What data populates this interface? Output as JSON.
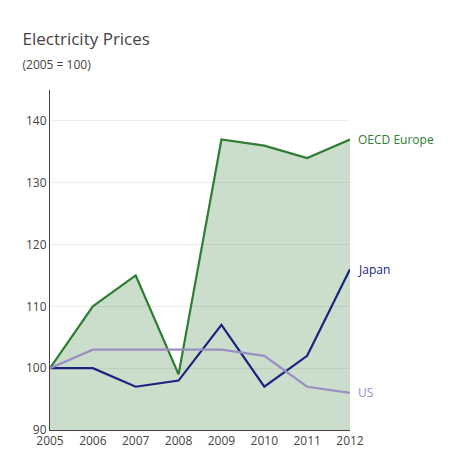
{
  "chart_data": {
    "type": "line",
    "title": "Electricity Prices",
    "subtitle": "(2005 = 100)",
    "x": [
      2005,
      2006,
      2007,
      2008,
      2009,
      2010,
      2011,
      2012
    ],
    "series": [
      {
        "name": "OECD Europe",
        "type": "area",
        "color": "#2e7d32",
        "values": [
          100,
          110,
          115,
          99,
          137,
          136,
          134,
          137
        ]
      },
      {
        "name": "Japan",
        "type": "line",
        "color": "#1a237e",
        "values": [
          100,
          100,
          97,
          98,
          107,
          97,
          102,
          116
        ]
      },
      {
        "name": "US",
        "type": "line",
        "color": "#9b8ec4",
        "values": [
          100,
          103,
          103,
          103,
          103,
          102,
          97,
          96
        ]
      }
    ],
    "xlim": [
      2005,
      2012
    ],
    "xticks": [
      2005,
      2006,
      2007,
      2008,
      2009,
      2010,
      2011,
      2012
    ],
    "ylim": [
      90,
      145
    ],
    "yticks": [
      90,
      100,
      110,
      120,
      130,
      140
    ],
    "grid": true
  }
}
